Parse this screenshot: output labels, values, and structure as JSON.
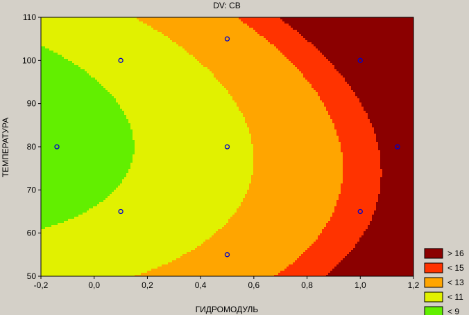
{
  "chart_data": {
    "type": "contour",
    "title": "DV: CB",
    "xlabel": "ГИДРОМОДУЛЬ",
    "ylabel": "ТЕМПЕРАТУРА",
    "xlim": [
      -0.2,
      1.2
    ],
    "ylim": [
      50,
      110
    ],
    "x_ticks": [
      -0.2,
      0.0,
      0.2,
      0.4,
      0.6,
      0.8,
      1.0,
      1.2
    ],
    "x_tick_labels": [
      "-0,2",
      "0,0",
      "0,2",
      "0,4",
      "0,6",
      "0,8",
      "1,0",
      "1,2"
    ],
    "y_ticks": [
      50,
      60,
      70,
      80,
      90,
      100,
      110
    ],
    "y_tick_labels": [
      "50",
      "60",
      "70",
      "80",
      "90",
      "100",
      "110"
    ],
    "legend_position": "bottom-right",
    "levels": [
      {
        "label": "> 16",
        "color": "#8b0000"
      },
      {
        "label": "< 15",
        "color": "#ff3300"
      },
      {
        "label": "< 13",
        "color": "#ffa500"
      },
      {
        "label": "< 11",
        "color": "#e1f100"
      },
      {
        "label": "< 9",
        "color": "#62ef00"
      }
    ],
    "extra_band_colors": [
      "#00c800",
      "#00962d",
      "#005f4b"
    ],
    "design_points": [
      {
        "x": -0.14,
        "y": 80
      },
      {
        "x": 0.1,
        "y": 100
      },
      {
        "x": 0.1,
        "y": 65
      },
      {
        "x": 0.5,
        "y": 105
      },
      {
        "x": 0.5,
        "y": 80
      },
      {
        "x": 0.5,
        "y": 55
      },
      {
        "x": 1.0,
        "y": 100
      },
      {
        "x": 1.0,
        "y": 65
      },
      {
        "x": 1.14,
        "y": 80
      }
    ],
    "point_color": "#0000cc"
  }
}
